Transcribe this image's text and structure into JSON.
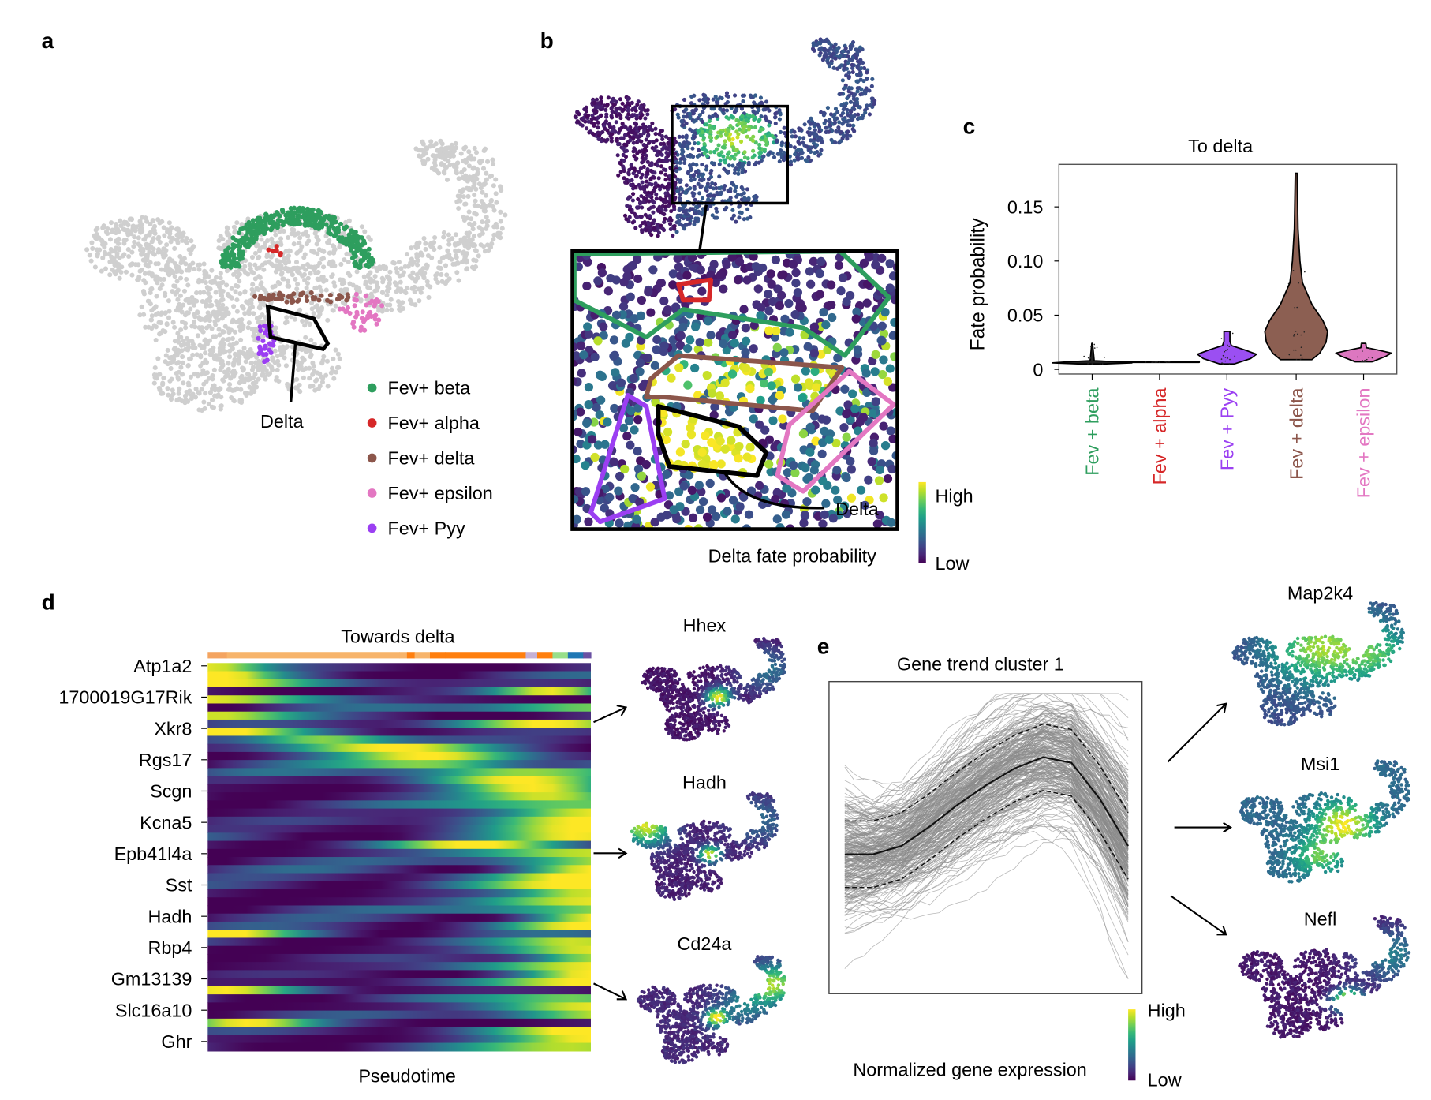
{
  "panels": {
    "a": {
      "label": "a",
      "annotation": "Delta",
      "legend": [
        {
          "label": "Fev+ beta",
          "color": "#2e9e5e"
        },
        {
          "label": "Fev+ alpha",
          "color": "#d62728"
        },
        {
          "label": "Fev+ delta",
          "color": "#8c564b"
        },
        {
          "label": "Fev+ epsilon",
          "color": "#e377c2"
        },
        {
          "label": "Fev+ Pyy",
          "color": "#9b3ff2"
        }
      ]
    },
    "b": {
      "label": "b",
      "annotation": "Delta",
      "colorbar_title": "Delta fate probability",
      "colorbar_high": "High",
      "colorbar_low": "Low"
    },
    "c": {
      "label": "c"
    },
    "d": {
      "label": "d",
      "gene_umaps": [
        {
          "gene": "Hhex"
        },
        {
          "gene": "Hadh"
        },
        {
          "gene": "Cd24a"
        }
      ]
    },
    "e": {
      "label": "e",
      "colorbar_title": "Normalized gene expression",
      "colorbar_high": "High",
      "colorbar_low": "Low",
      "gene_umaps": [
        {
          "gene": "Map2k4"
        },
        {
          "gene": "Msi1"
        },
        {
          "gene": "Nefl"
        }
      ]
    }
  },
  "chart_data": [
    {
      "type": "violin",
      "title": "To delta",
      "xlabel": "",
      "ylabel": "Fate probability",
      "ylim": [
        -0.004,
        0.19
      ],
      "yticks": [
        0,
        0.05,
        0.1,
        0.15
      ],
      "ytick_labels": [
        "0",
        "0.05",
        "0.10",
        "0.15"
      ],
      "grid": false,
      "categories": [
        {
          "label": "Fev + beta",
          "color": "#2e9e5e",
          "fill": "#222222",
          "min": 0.005,
          "max": 0.024,
          "profile": [
            [
              0.005,
              0.3
            ],
            [
              0.006,
              1.0
            ],
            [
              0.007,
              0.6
            ],
            [
              0.008,
              0.05
            ],
            [
              0.024,
              0.01
            ]
          ]
        },
        {
          "label": "Fev + alpha",
          "color": "#d62728",
          "fill": "#222222",
          "min": 0.0065,
          "max": 0.0075,
          "profile": [
            [
              0.0065,
              1.0
            ],
            [
              0.0075,
              1.0
            ]
          ]
        },
        {
          "label": "Fev + Pyy",
          "color": "#9b3ff2",
          "fill": "#9b4ff2",
          "min": 0.005,
          "max": 0.035,
          "profile": [
            [
              0.005,
              0.25
            ],
            [
              0.01,
              0.8
            ],
            [
              0.014,
              1.0
            ],
            [
              0.018,
              0.6
            ],
            [
              0.022,
              0.15
            ],
            [
              0.026,
              0.1
            ],
            [
              0.035,
              0.1
            ]
          ]
        },
        {
          "label": "Fev + delta",
          "color": "#8c564b",
          "fill": "#8c5f52",
          "min": 0.009,
          "max": 0.181,
          "profile": [
            [
              0.009,
              0.5
            ],
            [
              0.015,
              0.75
            ],
            [
              0.025,
              0.95
            ],
            [
              0.035,
              1.0
            ],
            [
              0.045,
              0.85
            ],
            [
              0.06,
              0.5
            ],
            [
              0.08,
              0.2
            ],
            [
              0.1,
              0.12
            ],
            [
              0.13,
              0.06
            ],
            [
              0.181,
              0.03
            ]
          ]
        },
        {
          "label": "Fev + epsilon",
          "color": "#e377c2",
          "fill": "#dd77c0",
          "min": 0.007,
          "max": 0.024,
          "profile": [
            [
              0.007,
              0.3
            ],
            [
              0.012,
              0.8
            ],
            [
              0.015,
              1.0
            ],
            [
              0.018,
              0.5
            ],
            [
              0.02,
              0.1
            ],
            [
              0.024,
              0.08
            ]
          ]
        }
      ]
    },
    {
      "type": "heatmap",
      "title": "Towards delta",
      "xlabel": "Pseudotime",
      "ylabel": "",
      "colormap": "viridis",
      "gene_labels": [
        "Atp1a2",
        "1700019G17Rik",
        "Xkr8",
        "Rgs17",
        "Scgn",
        "Kcna5",
        "Epb41l4a",
        "Sst",
        "Hadh",
        "Rbp4",
        "Gm13139",
        "Slc16a10",
        "Ghr"
      ],
      "row_peaks": [
        0,
        0.02,
        0.03,
        0.9,
        0.0,
        0.95,
        0,
        0.85,
        0.05,
        0.3,
        0.45,
        0.6,
        0.62,
        0.75,
        0.8,
        0.85,
        0.9,
        0.95,
        1,
        0.95,
        1,
        1,
        0.7,
        1,
        1,
        1,
        0.98,
        1,
        1,
        1,
        1,
        1,
        1,
        0,
        1,
        1,
        1,
        1,
        1,
        1,
        0.05,
        1,
        1,
        1,
        0.1,
        1,
        1,
        1
      ],
      "cluster_bar_colors": [
        "#f4a460",
        "#f7b46b",
        "#f7b46b",
        "#ff7f0e",
        "#f7b46b",
        "#ff7f0e",
        "#ff7f0e",
        "#ff7f0e",
        "#c5b0d5",
        "#ff7f0e",
        "#98df8a",
        "#1f77b4",
        "#6a51a3"
      ]
    },
    {
      "type": "line",
      "title": "Gene trend cluster 1",
      "xlabel": "",
      "ylabel": "",
      "mean_trend": {
        "x": [
          0,
          0.1,
          0.2,
          0.3,
          0.4,
          0.5,
          0.6,
          0.7,
          0.8,
          0.9,
          1.0
        ],
        "y": [
          0.45,
          0.45,
          0.48,
          0.55,
          0.63,
          0.7,
          0.76,
          0.8,
          0.78,
          0.65,
          0.48
        ]
      },
      "band_offset": 0.12
    }
  ]
}
